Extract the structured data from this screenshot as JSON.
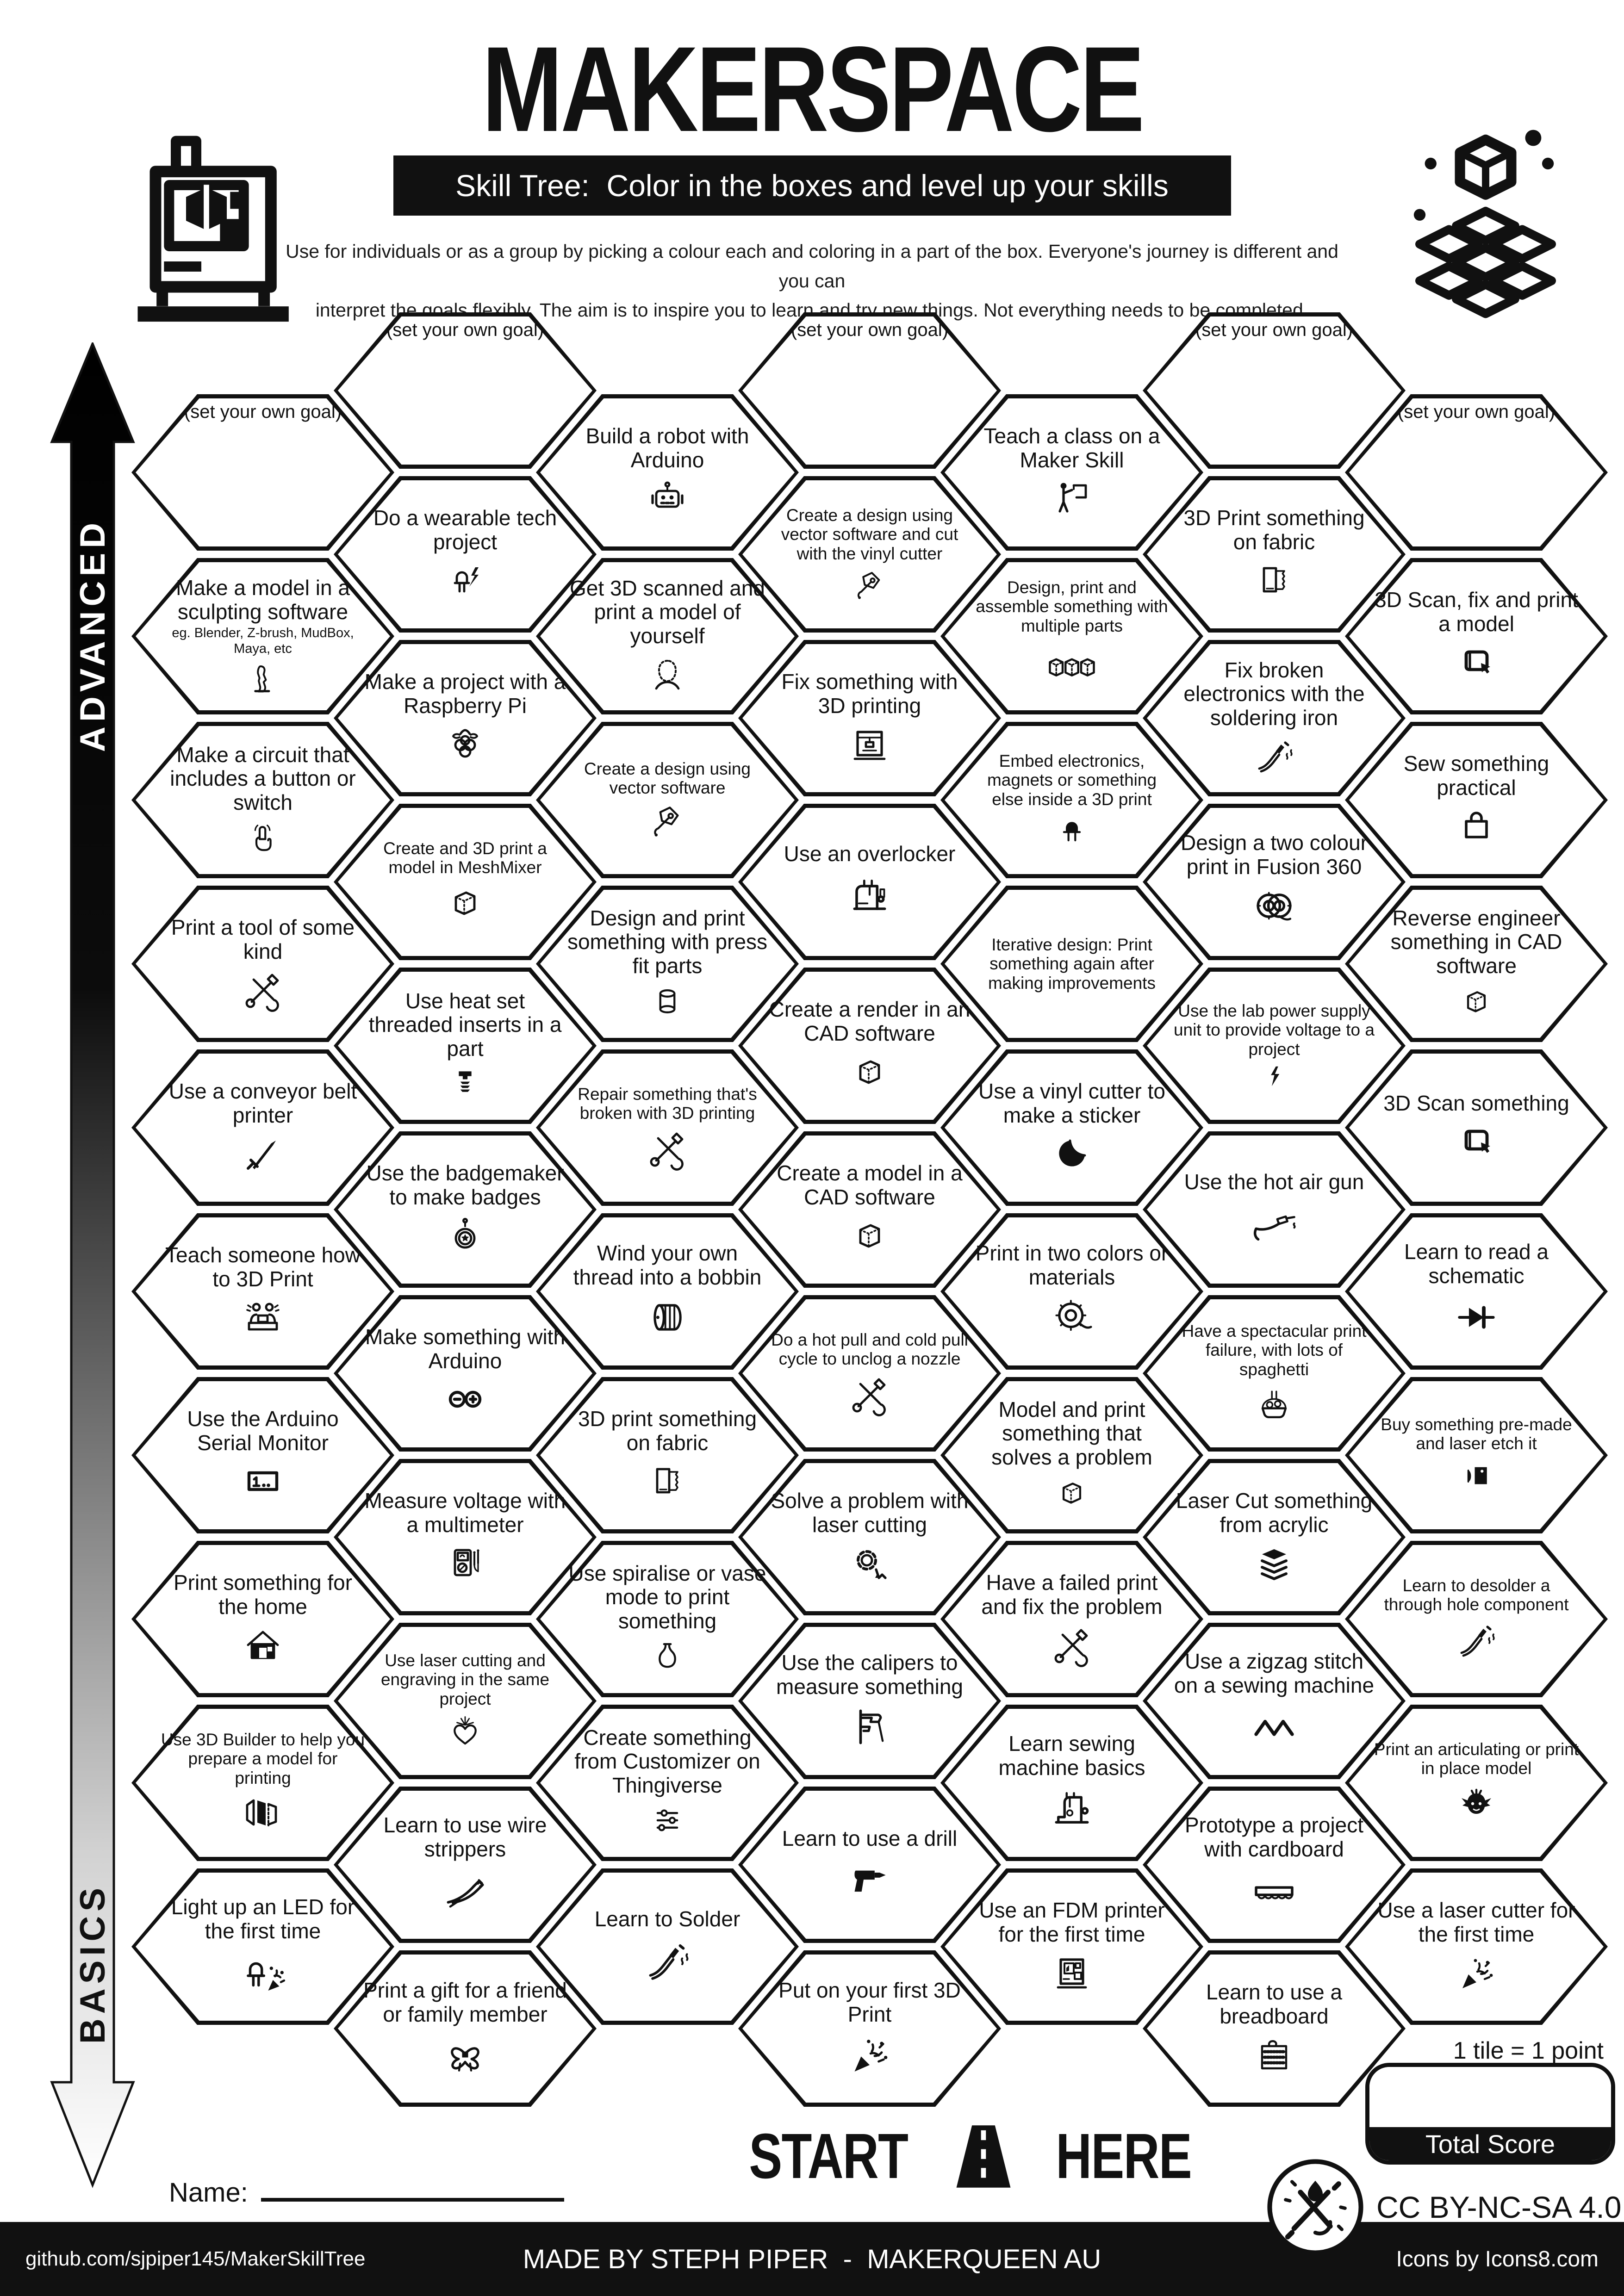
{
  "header": {
    "title": "MAKERSPACE",
    "subtitle": "Skill Tree:  Color in the boxes and level up your skills",
    "description_line1": "Use for individuals or as a group by picking a colour each and coloring in a part of the box.  Everyone's journey is different and you can",
    "description_line2": "interpret the goals flexibly.  The aim is to inspire you to learn and try new things. Not everything needs to be completed."
  },
  "axis": {
    "advanced": "ADVANCED",
    "basics": "BASICS"
  },
  "hexes": [
    {
      "id": "goal-a",
      "col": 0,
      "row": 0,
      "goal": true,
      "label": "(set your own goal)"
    },
    {
      "id": "sculpting-software",
      "col": 0,
      "row": 1,
      "label": "Make a model in a sculpting software",
      "sublabel": "eg. Blender, Z-brush, MudBox, Maya, etc",
      "icon": "sculpture-icon",
      "icon_size": 78
    },
    {
      "id": "circuit-button",
      "col": 0,
      "row": 2,
      "label": "Make a circuit that includes a button or switch",
      "icon": "press-button-icon",
      "icon_size": 84
    },
    {
      "id": "print-a-tool",
      "col": 0,
      "row": 3,
      "label": "Print a tool of some kind",
      "icon": "tools-icon"
    },
    {
      "id": "conveyor-belt-printer",
      "col": 0,
      "row": 4,
      "label": "Use a conveyor belt printer",
      "icon": "sword-icon"
    },
    {
      "id": "teach-someone-3d-print",
      "col": 0,
      "row": 5,
      "label": "Teach someone how to 3D Print",
      "icon": "teaching-people-icon"
    },
    {
      "id": "arduino-serial-monitor",
      "col": 0,
      "row": 6,
      "label": "Use the Arduino Serial Monitor",
      "icon": "serial-monitor-icon"
    },
    {
      "id": "print-for-home",
      "col": 0,
      "row": 7,
      "label": "Print something for the home",
      "icon": "house-icon"
    },
    {
      "id": "use-3d-builder",
      "col": 0,
      "row": 8,
      "label": "Use 3D Builder to help you prepare a model for printing",
      "small": true,
      "icon": "3d-builder-icon"
    },
    {
      "id": "light-led-first-time",
      "col": 0,
      "row": 9,
      "label": "Light up an LED for the first time",
      "icon": "led-celebration-icon",
      "icon_size": 110
    },
    {
      "id": "goal-b",
      "col": 1,
      "row": 0,
      "goal": true,
      "label": "(set your own goal)"
    },
    {
      "id": "wearable-tech",
      "col": 1,
      "row": 1,
      "label": "Do a wearable tech project",
      "icon": "led-bolt-icon"
    },
    {
      "id": "raspberry-pi-project",
      "col": 1,
      "row": 2,
      "label": "Make a project with a Raspberry Pi",
      "icon": "raspberry-pi-icon"
    },
    {
      "id": "meshmixer-model",
      "col": 1,
      "row": 3,
      "label": "Create and 3D print a model in MeshMixer",
      "small": true,
      "icon": "cube-dotted-icon"
    },
    {
      "id": "heat-set-inserts",
      "col": 1,
      "row": 4,
      "label": "Use heat set threaded inserts in a part",
      "icon": "threaded-insert-icon",
      "icon_size": 82
    },
    {
      "id": "badgemaker",
      "col": 1,
      "row": 5,
      "label": "Use the badgemaker to make badges",
      "icon": "badge-icon"
    },
    {
      "id": "make-with-arduino",
      "col": 1,
      "row": 6,
      "label": "Make something with Arduino",
      "icon": "arduino-icon"
    },
    {
      "id": "measure-voltage",
      "col": 1,
      "row": 7,
      "label": "Measure voltage with a multimeter",
      "icon": "multimeter-icon"
    },
    {
      "id": "laser-cut-engrave",
      "col": 1,
      "row": 8,
      "label": "Use laser cutting and engraving in the same project",
      "small": true,
      "icon": "heart-laser-icon",
      "icon_size": 84
    },
    {
      "id": "wire-strippers",
      "col": 1,
      "row": 9,
      "label": "Learn to use wire strippers",
      "icon": "wire-strippers-icon",
      "icon_size": 110
    },
    {
      "id": "print-a-gift",
      "col": 1,
      "row": 10,
      "label": "Print a gift for a friend or family member",
      "icon": "gift-bow-icon",
      "icon_size": 104
    },
    {
      "id": "robot-arduino",
      "col": 2,
      "row": 0,
      "label": "Build a robot with Arduino",
      "icon": "robot-icon"
    },
    {
      "id": "get-3d-scanned",
      "col": 2,
      "row": 1,
      "label": "Get 3D scanned and print a model of yourself",
      "icon": "scan-head-icon"
    },
    {
      "id": "vector-design",
      "col": 2,
      "row": 2,
      "label": "Create a design  using vector software",
      "small": true,
      "icon": "pen-tool-icon",
      "icon_size": 86
    },
    {
      "id": "press-fit-parts",
      "col": 2,
      "row": 3,
      "label": "Design and print something with press fit parts",
      "icon": "cylinder-icon",
      "icon_size": 86
    },
    {
      "id": "repair-with-3d-printing",
      "col": 2,
      "row": 4,
      "label": "Repair something that's broken with 3D printing",
      "small": true,
      "icon": "tools-icon"
    },
    {
      "id": "wind-bobbin",
      "col": 2,
      "row": 5,
      "label": "Wind your own thread into a bobbin",
      "icon": "bobbin-icon",
      "icon_size": 104
    },
    {
      "id": "3d-print-on-fabric",
      "col": 2,
      "row": 6,
      "label": "3D print something on fabric",
      "icon": "fabric-icon"
    },
    {
      "id": "spiralise-vase-mode",
      "col": 2,
      "row": 7,
      "label": "Use spiralise or vase mode to print something",
      "icon": "vase-icon",
      "icon_size": 86
    },
    {
      "id": "customizer-thingiverse",
      "col": 2,
      "row": 8,
      "label": "Create something from Customizer on Thingiverse",
      "icon": "customizer-icon",
      "icon_size": 84
    },
    {
      "id": "learn-to-solder",
      "col": 2,
      "row": 9,
      "label": "Learn to Solder",
      "icon": "soldering-iron-icon",
      "icon_size": 110
    },
    {
      "id": "goal-d",
      "col": 3,
      "row": 0,
      "goal": true,
      "label": "(set your own goal)"
    },
    {
      "id": "vinyl-cutter-design",
      "col": 3,
      "row": 1,
      "label": "Create a  design using vector software and cut with the vinyl cutter",
      "small": true,
      "icon": "pen-tool-icon",
      "icon_size": 78
    },
    {
      "id": "fix-with-3d-printing",
      "col": 3,
      "row": 2,
      "label": "Fix something with 3D printing",
      "icon": "3d-printer-icon"
    },
    {
      "id": "use-an-overlocker",
      "col": 3,
      "row": 3,
      "label": "Use an overlocker",
      "icon": "overlocker-icon",
      "icon_size": 112
    },
    {
      "id": "cad-render",
      "col": 3,
      "row": 4,
      "label": "Create a render in an CAD software",
      "icon": "cube-dotted-icon"
    },
    {
      "id": "cad-model",
      "col": 3,
      "row": 5,
      "label": "Create a model in a CAD software",
      "icon": "cube-dotted-icon"
    },
    {
      "id": "hot-pull-cold-pull",
      "col": 3,
      "row": 6,
      "label": "Do a hot pull and cold pull cycle to unclog a nozzle",
      "small": true,
      "icon": "tools-icon"
    },
    {
      "id": "solve-with-laser-cutting",
      "col": 3,
      "row": 7,
      "label": "Solve a problem with laser cutting",
      "icon": "gear-laser-icon"
    },
    {
      "id": "use-calipers",
      "col": 3,
      "row": 8,
      "label": "Use the calipers to measure something",
      "icon": "calipers-icon",
      "icon_size": 104
    },
    {
      "id": "learn-drill",
      "col": 3,
      "row": 9,
      "label": "Learn to use a drill",
      "icon": "drill-icon",
      "icon_size": 104
    },
    {
      "id": "first-3d-print",
      "col": 3,
      "row": 10,
      "label": "Put on your first 3D Print",
      "icon": "party-popper-icon",
      "icon_size": 104
    },
    {
      "id": "teach-a-class",
      "col": 4,
      "row": 0,
      "label": "Teach a class on a Maker Skill",
      "icon": "presenter-icon"
    },
    {
      "id": "multiple-parts",
      "col": 4,
      "row": 1,
      "label": "Design, print and assemble something with multiple parts",
      "small": true,
      "icon": "three-cubes-icon",
      "icon_size": 120
    },
    {
      "id": "embed-electronics",
      "col": 4,
      "row": 2,
      "label": "Embed electronics, magnets or something else inside a 3D print",
      "small": true,
      "icon": "led-icon",
      "icon_size": 78
    },
    {
      "id": "iterative-design",
      "col": 4,
      "row": 3,
      "label": "Iterative design: Print something again after making improvements",
      "small": true
    },
    {
      "id": "vinyl-sticker",
      "col": 4,
      "row": 4,
      "label": "Use a vinyl cutter to make a sticker",
      "icon": "sticker-icon"
    },
    {
      "id": "two-colors",
      "col": 4,
      "row": 5,
      "label": "Print in two colors or materials",
      "icon": "filament-spool-icon",
      "icon_size": 104
    },
    {
      "id": "model-solves-problem",
      "col": 4,
      "row": 6,
      "label": "Model and print something that solves a problem",
      "icon": "cube-dotted-icon",
      "icon_size": 86
    },
    {
      "id": "failed-print-fix",
      "col": 4,
      "row": 7,
      "label": "Have a failed print and fix the problem",
      "icon": "tools-icon"
    },
    {
      "id": "sewing-machine-basics",
      "col": 4,
      "row": 8,
      "label": "Learn sewing machine basics",
      "icon": "sewing-machine-icon",
      "icon_size": 108
    },
    {
      "id": "fdm-first-time",
      "col": 4,
      "row": 9,
      "label": "Use an FDM printer for the first time",
      "icon": "fdm-printer-icon"
    },
    {
      "id": "goal-f",
      "col": 5,
      "row": 0,
      "goal": true,
      "label": "(set your own goal)"
    },
    {
      "id": "3d-print-fabric",
      "col": 5,
      "row": 1,
      "label": "3D Print something on fabric",
      "icon": "fabric-icon"
    },
    {
      "id": "fix-broken-electronics",
      "col": 5,
      "row": 2,
      "label": "Fix broken electronics with the soldering iron",
      "icon": "soldering-iron-icon"
    },
    {
      "id": "fusion-two-colour",
      "col": 5,
      "row": 3,
      "label": "Design a two colour print in Fusion 360",
      "icon": "two-spools-icon",
      "icon_size": 108
    },
    {
      "id": "lab-power-supply",
      "col": 5,
      "row": 4,
      "label": "Use the lab power supply unit to provide voltage to a project",
      "small": true,
      "icon": "bolt-icon",
      "icon_size": 60
    },
    {
      "id": "hot-air-gun",
      "col": 5,
      "row": 5,
      "label": "Use the hot air gun",
      "icon": "hot-air-gun-icon",
      "icon_size": 110
    },
    {
      "id": "spaghetti-failure",
      "col": 5,
      "row": 6,
      "label": "Have a spectacular print failure, with lots of spaghetti",
      "small": true,
      "icon": "spaghetti-icon",
      "icon_size": 92
    },
    {
      "id": "laser-cut-acrylic",
      "col": 5,
      "row": 7,
      "label": "Laser Cut something from acrylic",
      "icon": "acrylic-layers-icon"
    },
    {
      "id": "zigzag-stitch",
      "col": 5,
      "row": 8,
      "label": "Use a zigzag stitch on a sewing machine",
      "icon": "zigzag-icon",
      "icon_size": 110
    },
    {
      "id": "cardboard-prototype",
      "col": 5,
      "row": 9,
      "label": "Prototype a project with cardboard",
      "icon": "cardboard-icon",
      "icon_size": 110
    },
    {
      "id": "learn-breadboard",
      "col": 5,
      "row": 10,
      "label": "Learn to use a breadboard",
      "icon": "breadboard-icon"
    },
    {
      "id": "goal-g",
      "col": 6,
      "row": 0,
      "goal": true,
      "label": "(set your own goal)"
    },
    {
      "id": "scan-fix-print",
      "col": 6,
      "row": 1,
      "label": "3D Scan, fix and print a model",
      "icon": "3d-scan-icon"
    },
    {
      "id": "sew-practical",
      "col": 6,
      "row": 2,
      "label": "Sew something practical",
      "icon": "bag-icon"
    },
    {
      "id": "reverse-engineer-cad",
      "col": 6,
      "row": 3,
      "label": "Reverse engineer something in CAD software",
      "icon": "cube-dotted-icon",
      "icon_size": 86
    },
    {
      "id": "3d-scan-something",
      "col": 6,
      "row": 4,
      "label": "3D Scan something",
      "icon": "3d-scan-icon"
    },
    {
      "id": "read-schematic",
      "col": 6,
      "row": 5,
      "label": "Learn to read a schematic",
      "icon": "diode-icon",
      "icon_size": 110
    },
    {
      "id": "laser-etch-premade",
      "col": 6,
      "row": 6,
      "label": "Buy something pre-made and laser etch it",
      "small": true,
      "icon": "laser-etch-icon",
      "icon_size": 84
    },
    {
      "id": "desolder-through-hole",
      "col": 6,
      "row": 7,
      "label": "Learn to desolder a through hole component",
      "small": true,
      "icon": "desolder-icon"
    },
    {
      "id": "articulating-model",
      "col": 6,
      "row": 8,
      "label": "Print an articulating or print in place model",
      "small": true,
      "icon": "dragon-icon"
    },
    {
      "id": "laser-cutter-first-time",
      "col": 6,
      "row": 9,
      "label": "Use a laser cutter for the first time",
      "icon": "party-popper-icon"
    }
  ],
  "footer": {
    "start": "START",
    "here": "HERE",
    "name_label": "Name:",
    "tile_note": "1 tile = 1 point",
    "total_score": "Total Score",
    "license": "CC BY-NC-SA 4.0",
    "credit_left": "github.com/sjpiper145/MakerSkillTree",
    "credit_center": "MADE BY STEPH PIPER  -  MAKERQUEEN AU",
    "credit_right": "Icons by Icons8.com"
  }
}
